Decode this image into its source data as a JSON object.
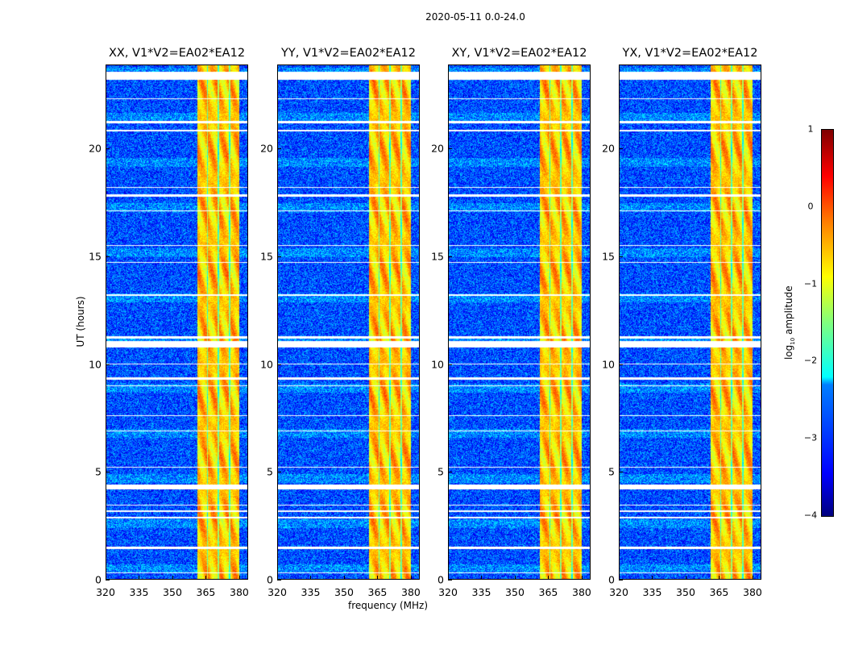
{
  "suptitle": "2020-05-11 0.0-24.0",
  "chart_data": {
    "type": "heatmap",
    "xlabel": "frequency (MHz)",
    "ylabel": "UT (hours)",
    "xlim": [
      320,
      384
    ],
    "ylim": [
      0,
      23.9
    ],
    "xticks": [
      "320",
      "335",
      "350",
      "365",
      "380"
    ],
    "xtick_values": [
      320,
      335,
      350,
      365,
      380
    ],
    "yticks": [
      "0",
      "5",
      "10",
      "15",
      "20"
    ],
    "ytick_values": [
      0,
      5,
      10,
      15,
      20
    ],
    "panels": [
      {
        "title": "XX, V1*V2=EA02*EA12"
      },
      {
        "title": "YY, V1*V2=EA02*EA12"
      },
      {
        "title": "XY, V1*V2=EA02*EA12"
      },
      {
        "title": "YX, V1*V2=EA02*EA12"
      }
    ],
    "background_log_amplitude": -3,
    "bright_band_mhz": [
      361,
      380
    ],
    "bright_band_log_amplitude": -0.6,
    "flagged_hours": [
      [
        0.3,
        0.35
      ],
      [
        1.45,
        1.55
      ],
      [
        2.85,
        2.95
      ],
      [
        3.15,
        3.25
      ],
      [
        3.45,
        3.5
      ],
      [
        4.2,
        4.45
      ],
      [
        5.2,
        5.25
      ],
      [
        6.9,
        6.95
      ],
      [
        7.6,
        7.65
      ],
      [
        9.0,
        9.05
      ],
      [
        9.3,
        9.4
      ],
      [
        10.0,
        10.05
      ],
      [
        10.8,
        11.1
      ],
      [
        11.2,
        11.3
      ],
      [
        13.2,
        13.25
      ],
      [
        14.7,
        14.75
      ],
      [
        15.5,
        15.55
      ],
      [
        17.1,
        17.15
      ],
      [
        17.8,
        17.9
      ],
      [
        18.2,
        18.25
      ],
      [
        20.8,
        20.9
      ],
      [
        21.2,
        21.3
      ],
      [
        22.3,
        22.35
      ],
      [
        23.2,
        23.6
      ]
    ],
    "colorbar": {
      "label": "log10 amplitude",
      "label_main": "log",
      "label_sub": "10",
      "label_rest": " amplitude",
      "range": [
        -4,
        1
      ],
      "ticks": [
        "1",
        "0",
        "−1",
        "−2",
        "−3",
        "−4"
      ],
      "tick_values": [
        1,
        0,
        -1,
        -2,
        -3,
        -4
      ],
      "colormap": "jet"
    }
  }
}
